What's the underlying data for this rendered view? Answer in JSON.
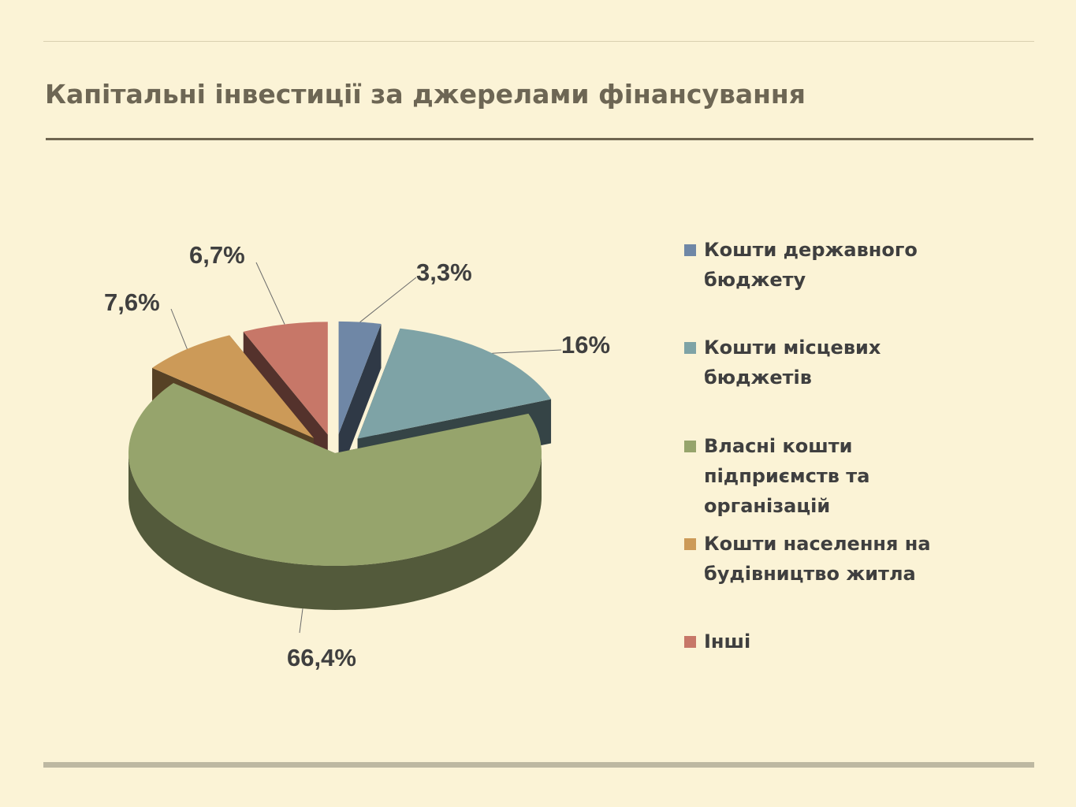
{
  "chart_data": {
    "type": "pie",
    "title": "Капітальні інвестиції за джерелами фінансування",
    "legend_position": "right",
    "slices": [
      {
        "name": "Кошти державного бюджету",
        "value": 3.3,
        "label": "3,3%",
        "color": "#6f87a6",
        "exploded": true
      },
      {
        "name": "Кошти місцевих бюджетів",
        "value": 16,
        "label": "16%",
        "color": "#7ea3a6",
        "exploded": true
      },
      {
        "name": "Власні кошти підприємств та організацій",
        "value": 66.4,
        "label": "66,4%",
        "color": "#96a46c",
        "exploded": false
      },
      {
        "name": "Кошти населення на будівництво житла",
        "value": 7.6,
        "label": "7,6%",
        "color": "#cc9a58",
        "exploded": true
      },
      {
        "name": "Інші",
        "value": 6.7,
        "label": "6,7%",
        "color": "#c77768",
        "exploded": true
      }
    ]
  }
}
